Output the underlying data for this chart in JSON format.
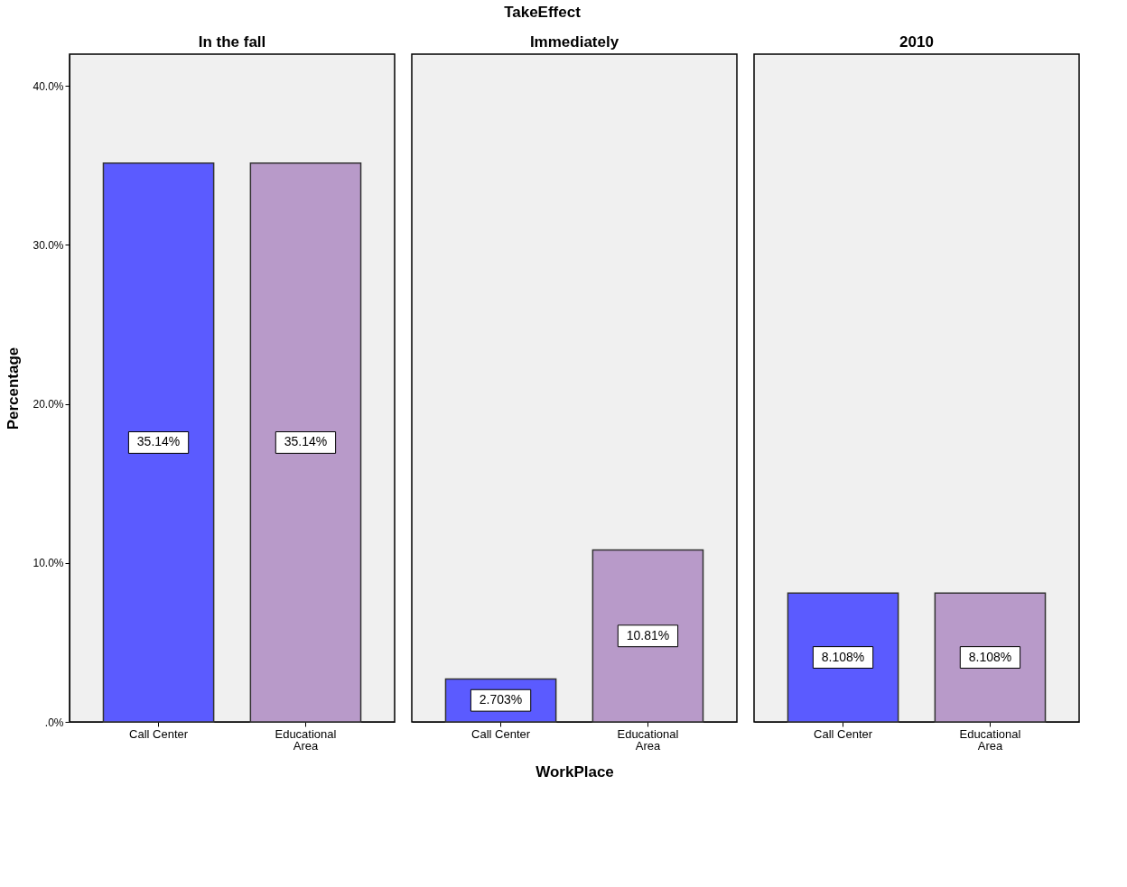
{
  "chart_data": [
    {
      "type": "bar",
      "title": "In the fall",
      "ylabel": "Percentage",
      "categories": [
        "Call Center",
        "Educational Area"
      ],
      "values": [
        35.14,
        35.14
      ],
      "colors": [
        "#5b5bff",
        "#b89ac9"
      ],
      "value_labels": [
        "35.14%",
        "35.14%"
      ],
      "ylim": [
        0,
        42
      ],
      "yticks": [
        {
          "value": 0,
          "label": ".0%"
        },
        {
          "value": 10,
          "label": "10.0%"
        },
        {
          "value": 20,
          "label": "20.0%"
        },
        {
          "value": 30,
          "label": "30.0%"
        },
        {
          "value": 40,
          "label": "40.0%"
        }
      ]
    },
    {
      "type": "bar",
      "title": "Immediately",
      "xlabel": "WorkPlace",
      "annotations": [
        "TakeEffect"
      ],
      "categories": [
        "Call Center",
        "Educational Area"
      ],
      "values": [
        2.703,
        10.81
      ],
      "colors": [
        "#5b5bff",
        "#b89ac9"
      ],
      "value_labels": [
        "2.703%",
        "10.81%"
      ],
      "ylim": [
        0,
        42
      ],
      "tick_labels": "x"
    },
    {
      "type": "bar",
      "title": "2010",
      "categories": [
        "Call Center",
        "Educational Area"
      ],
      "values": [
        8.108,
        8.108
      ],
      "colors": [
        "#5b5bff",
        "#b89ac9"
      ],
      "value_labels": [
        "8.108%",
        "8.108%"
      ],
      "ylim": [
        0,
        42
      ],
      "tick_labels": "x"
    }
  ]
}
